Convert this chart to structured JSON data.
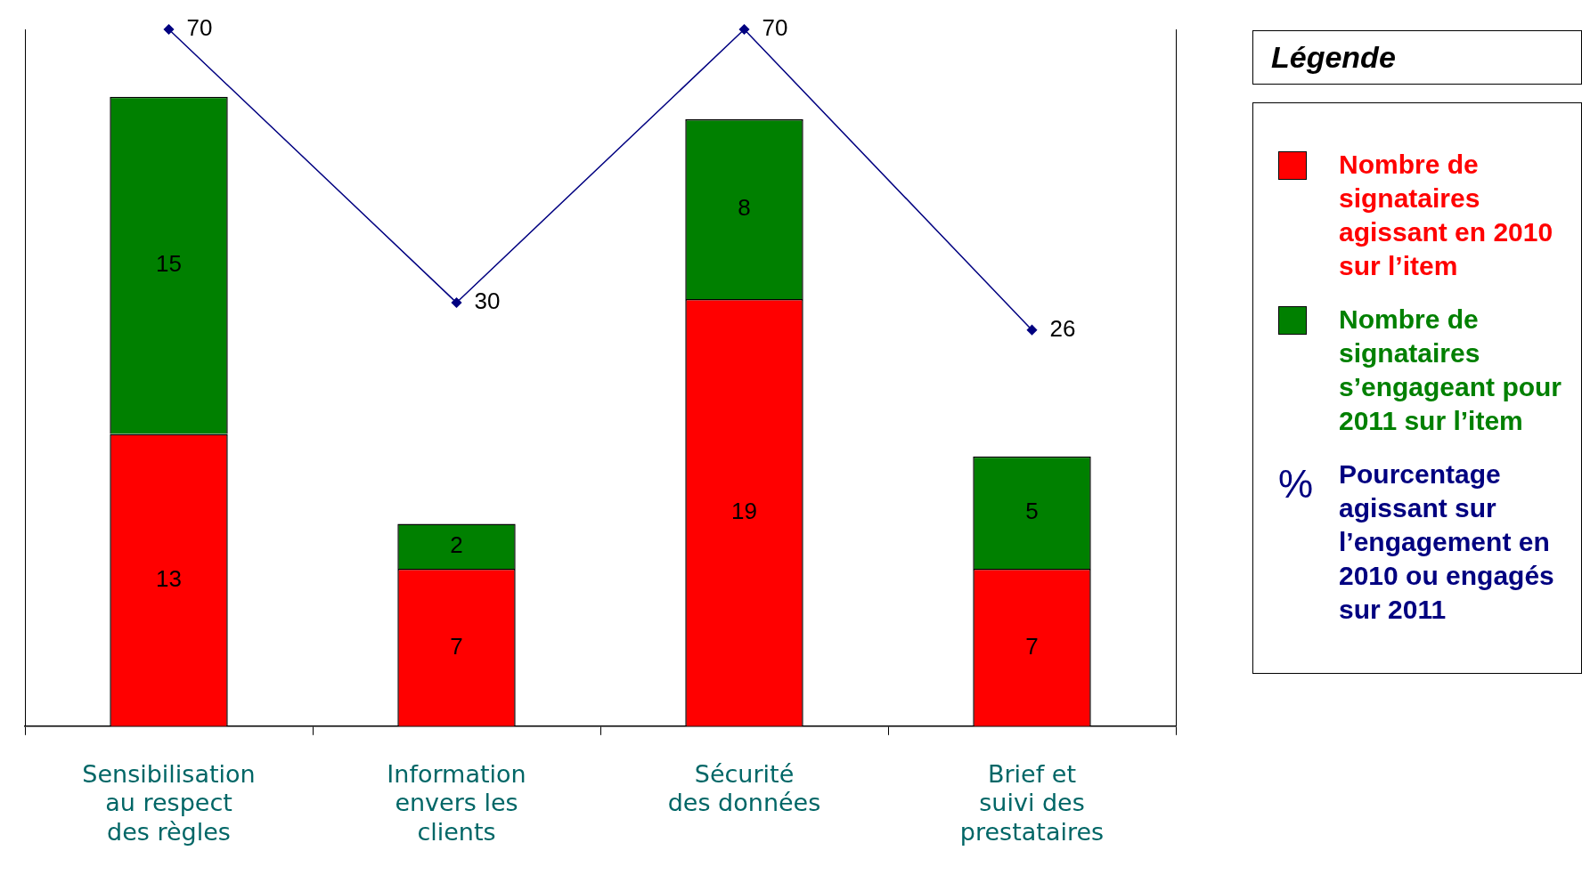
{
  "chart_data": {
    "type": "bar",
    "stacked": true,
    "categories": [
      "Sensibilisation au respect des règles",
      "Information envers les clients",
      "Sécurité des données",
      "Brief et suivi des prestataires"
    ],
    "series": [
      {
        "name": "Nombre de signataires agissant en 2010 sur l’item",
        "color": "#ff0000",
        "values": [
          13,
          7,
          19,
          7
        ]
      },
      {
        "name": "Nombre de signataires s’engageant pour 2011 sur l’item",
        "color": "#008000",
        "values": [
          15,
          2,
          8,
          5
        ]
      },
      {
        "name": "Pourcentage agissant sur l’engagement en 2010 ou engagés sur 2011",
        "type": "line",
        "axis": "y2",
        "color": "#000080",
        "marker": "diamond",
        "values": [
          70,
          30,
          70,
          26
        ]
      }
    ],
    "ylim": [
      0,
      31
    ],
    "y2lim": [
      -32,
      70
    ],
    "tick_labels": "x",
    "data_labels": true,
    "legend": "right",
    "legend_title": "Légende",
    "annotations": [
      "%"
    ],
    "grid": false
  }
}
